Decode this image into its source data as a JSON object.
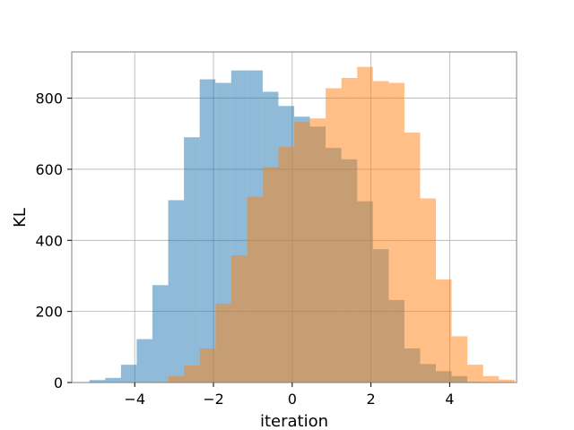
{
  "chart_data": {
    "type": "bar",
    "xlabel": "iteration",
    "ylabel": "KL",
    "xlim": [
      -5.6,
      5.7
    ],
    "ylim": [
      0,
      930
    ],
    "grid": true,
    "xticks": [
      -4,
      -2,
      0,
      2,
      4
    ],
    "xtick_labels": [
      "−4",
      "−2",
      "0",
      "2",
      "4"
    ],
    "yticks": [
      0,
      200,
      400,
      600,
      800
    ],
    "ytick_labels": [
      "0",
      "200",
      "400",
      "600",
      "800"
    ],
    "bin_width": 0.4,
    "series": [
      {
        "color": "#1f77b4",
        "alpha": 0.5,
        "bin_start": -5.15,
        "values": [
          7,
          13,
          50,
          122,
          274,
          513,
          690,
          853,
          843,
          878,
          878,
          818,
          778,
          748,
          720,
          660,
          628,
          510,
          375,
          232,
          96,
          52,
          32,
          18,
          2
        ]
      },
      {
        "color": "#ff7f0e",
        "alpha": 0.5,
        "bin_start": -3.55,
        "values": [
          2,
          18,
          48,
          96,
          222,
          358,
          523,
          606,
          663,
          733,
          743,
          828,
          857,
          888,
          848,
          843,
          703,
          518,
          290,
          130,
          50,
          18,
          8
        ]
      }
    ]
  }
}
